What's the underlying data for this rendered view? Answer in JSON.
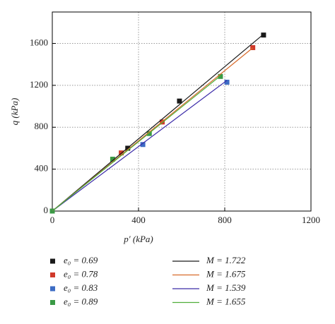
{
  "chart_data": {
    "type": "scatter",
    "xlabel": "p′ (kPa)",
    "ylabel": "q (kPa)",
    "xlim": [
      0,
      1200
    ],
    "ylim": [
      0,
      1900
    ],
    "xticks": [
      0,
      400,
      800,
      1200
    ],
    "yticks": [
      0,
      400,
      800,
      1200,
      1600
    ],
    "grid": true,
    "series": [
      {
        "name": "e₀ = 0.69",
        "mode": "markers",
        "color": "#1a1a1a",
        "x": [
          0,
          350,
          590,
          980
        ],
        "values": [
          0,
          600,
          1050,
          1680
        ]
      },
      {
        "name": "e₀ = 0.78",
        "mode": "markers",
        "color": "#d0392b",
        "x": [
          0,
          320,
          510,
          930
        ],
        "values": [
          0,
          555,
          850,
          1560
        ]
      },
      {
        "name": "e₀ = 0.83",
        "mode": "markers",
        "color": "#3c6cc4",
        "x": [
          0,
          420,
          810
        ],
        "values": [
          0,
          635,
          1230
        ]
      },
      {
        "name": "e₀ = 0.89",
        "mode": "markers",
        "color": "#3a9a45",
        "x": [
          0,
          280,
          450,
          780
        ],
        "values": [
          0,
          495,
          740,
          1285
        ]
      },
      {
        "name": "M = 1.722",
        "mode": "line",
        "color": "#1a1a1a",
        "x": [
          0,
          980
        ],
        "values": [
          0,
          1688
        ]
      },
      {
        "name": "M = 1.675",
        "mode": "line",
        "color": "#d86a2a",
        "x": [
          0,
          930
        ],
        "values": [
          0,
          1558
        ]
      },
      {
        "name": "M = 1.539",
        "mode": "line",
        "color": "#3a2aa8",
        "x": [
          0,
          810
        ],
        "values": [
          0,
          1247
        ]
      },
      {
        "name": "M = 1.655",
        "mode": "line",
        "color": "#4fae3a",
        "x": [
          0,
          780
        ],
        "values": [
          0,
          1291
        ]
      }
    ]
  }
}
